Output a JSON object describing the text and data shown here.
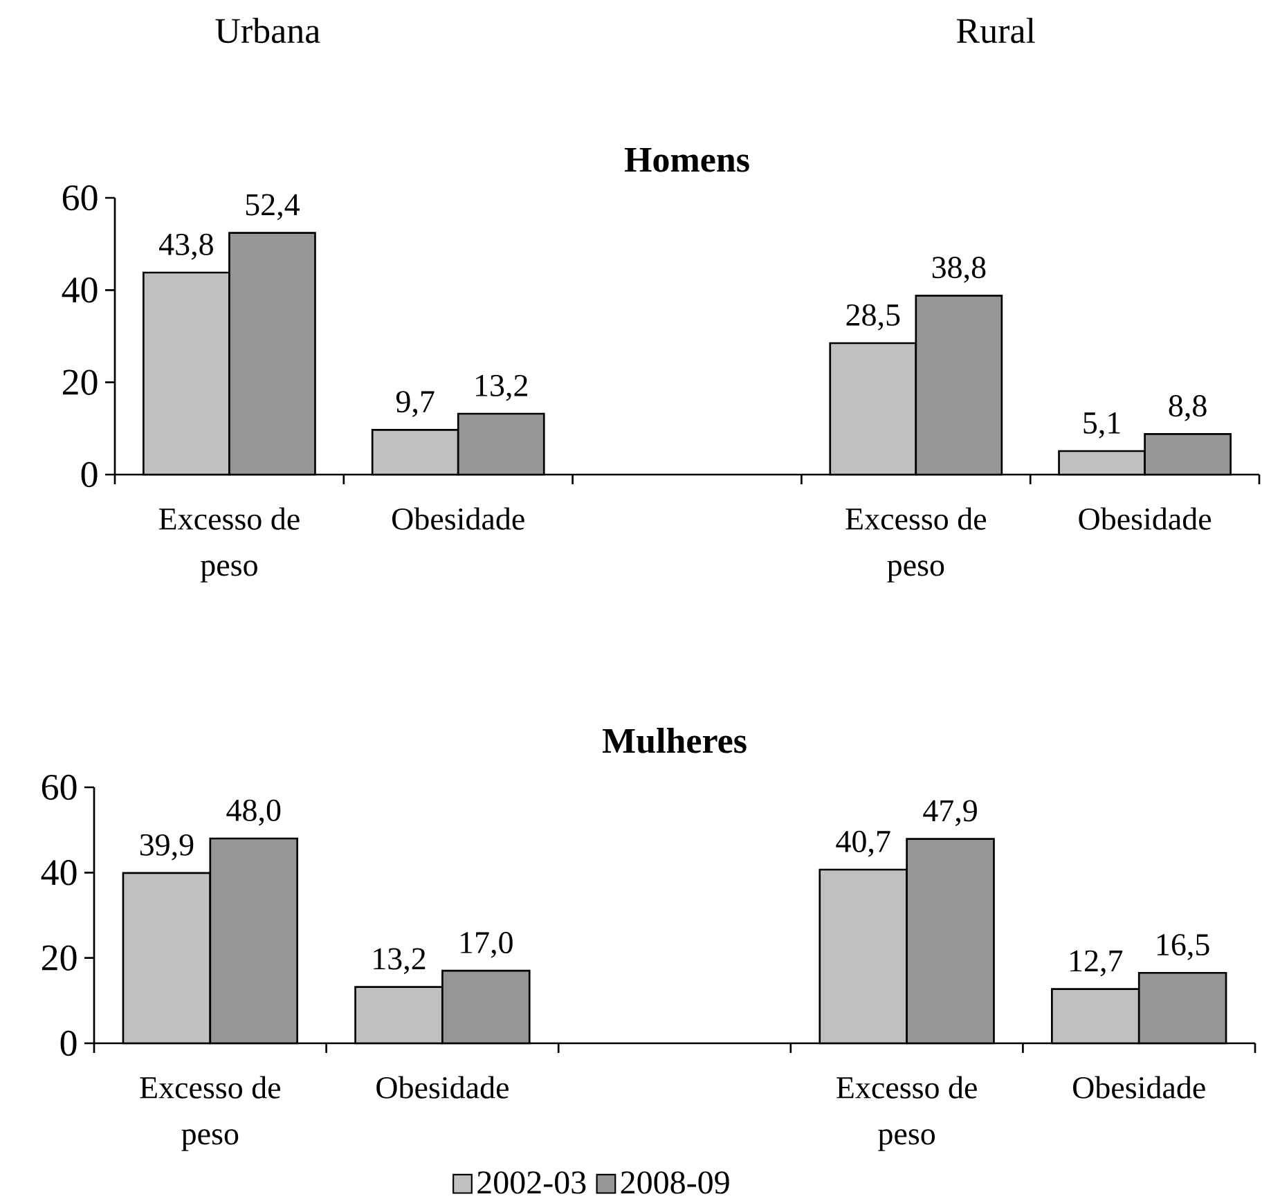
{
  "chart_data": [
    {
      "type": "bar",
      "title": "Homens",
      "annotations": [
        "Urbana",
        "Rural"
      ],
      "categories": [
        "Excesso de peso",
        "Obesidade",
        null,
        "Excesso de peso",
        "Obesidade"
      ],
      "series": [
        {
          "color": "#c0c0c0",
          "values": [
            43.8,
            9.7,
            null,
            28.5,
            5.1
          ],
          "value_labels": [
            "43,8",
            "9,7",
            null,
            "28,5",
            "5,1"
          ]
        },
        {
          "color": "#969696",
          "values": [
            52.4,
            13.2,
            null,
            38.8,
            8.8
          ],
          "value_labels": [
            "52,4",
            "13,2",
            null,
            "38,8",
            "8,8"
          ]
        }
      ],
      "ylim": [
        0,
        60
      ],
      "yticks": [
        0,
        20,
        40,
        60
      ]
    },
    {
      "type": "bar",
      "title": "Mulheres",
      "categories": [
        "Excesso de peso",
        "Obesidade",
        null,
        "Excesso de peso",
        "Obesidade"
      ],
      "series": [
        {
          "name": "2002-03",
          "color": "#c0c0c0",
          "values": [
            39.9,
            13.2,
            null,
            40.7,
            12.7
          ],
          "value_labels": [
            "39,9",
            "13,2",
            null,
            "40,7",
            "12,7"
          ]
        },
        {
          "name": "2008-09",
          "color": "#969696",
          "values": [
            48.0,
            17.0,
            null,
            47.9,
            16.5
          ],
          "value_labels": [
            "48,0",
            "17,0",
            null,
            "47,9",
            "16,5"
          ]
        }
      ],
      "ylim": [
        0,
        60
      ],
      "yticks": [
        0,
        20,
        40,
        60
      ],
      "legend": "bottom"
    }
  ]
}
